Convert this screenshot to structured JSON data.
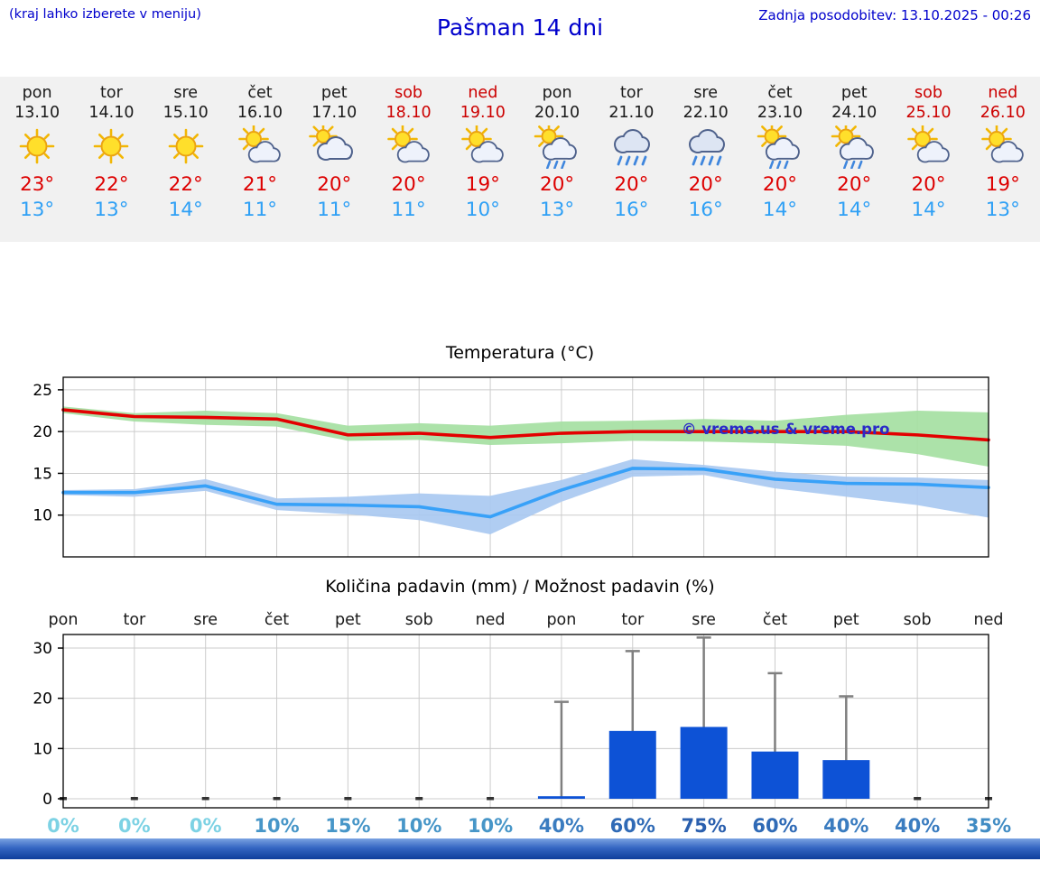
{
  "header": {
    "hint": "(kraj lahko izberete v meniju)",
    "title": "Pašman 14 dni",
    "updated": "Zadnja posodobitev: 13.10.2025 - 00:26"
  },
  "charts": {
    "watermark": "© vreme.us & vreme.pro",
    "watermark_color": "#2a2ac8",
    "grid_color": "#cccccc"
  },
  "forecast": {
    "days": [
      {
        "day": "pon",
        "date": "13.10",
        "weekend": false,
        "icon": "sun",
        "high": "23°",
        "low": "13°"
      },
      {
        "day": "tor",
        "date": "14.10",
        "weekend": false,
        "icon": "sun",
        "high": "22°",
        "low": "13°"
      },
      {
        "day": "sre",
        "date": "15.10",
        "weekend": false,
        "icon": "sun",
        "high": "22°",
        "low": "14°"
      },
      {
        "day": "čet",
        "date": "16.10",
        "weekend": false,
        "icon": "sun-cloud",
        "high": "21°",
        "low": "11°"
      },
      {
        "day": "pet",
        "date": "17.10",
        "weekend": false,
        "icon": "cloud-sun",
        "high": "20°",
        "low": "11°"
      },
      {
        "day": "sob",
        "date": "18.10",
        "weekend": true,
        "icon": "sun-cloud",
        "high": "20°",
        "low": "11°"
      },
      {
        "day": "ned",
        "date": "19.10",
        "weekend": true,
        "icon": "sun-cloud",
        "high": "19°",
        "low": "10°"
      },
      {
        "day": "pon",
        "date": "20.10",
        "weekend": false,
        "icon": "rain-sun",
        "high": "20°",
        "low": "13°"
      },
      {
        "day": "tor",
        "date": "21.10",
        "weekend": false,
        "icon": "rain",
        "high": "20°",
        "low": "16°"
      },
      {
        "day": "sre",
        "date": "22.10",
        "weekend": false,
        "icon": "rain",
        "high": "20°",
        "low": "16°"
      },
      {
        "day": "čet",
        "date": "23.10",
        "weekend": false,
        "icon": "rain-sun",
        "high": "20°",
        "low": "14°"
      },
      {
        "day": "pet",
        "date": "24.10",
        "weekend": false,
        "icon": "rain-sun",
        "high": "20°",
        "low": "14°"
      },
      {
        "day": "sob",
        "date": "25.10",
        "weekend": true,
        "icon": "sun-cloud",
        "high": "20°",
        "low": "14°"
      },
      {
        "day": "ned",
        "date": "26.10",
        "weekend": true,
        "icon": "sun-cloud",
        "high": "19°",
        "low": "13°"
      }
    ]
  },
  "chart_data": [
    {
      "type": "line",
      "title": "Temperatura (°C)",
      "x_labels": [
        "pon",
        "tor",
        "sre",
        "čet",
        "pet",
        "sob",
        "ned",
        "pon",
        "tor",
        "sre",
        "čet",
        "pet",
        "sob",
        "ned"
      ],
      "series": [
        {
          "name": "max-temp",
          "color": "#e30000",
          "values": [
            22.6,
            21.8,
            21.7,
            21.5,
            19.6,
            19.8,
            19.3,
            19.8,
            20.0,
            20.0,
            20.0,
            20.0,
            19.6,
            19.0
          ]
        },
        {
          "name": "min-temp",
          "color": "#38a1f8",
          "values": [
            12.7,
            12.7,
            13.5,
            11.3,
            11.2,
            11.0,
            9.8,
            13.0,
            15.6,
            15.5,
            14.3,
            13.8,
            13.7,
            13.3
          ]
        }
      ],
      "bands": [
        {
          "name": "max-range",
          "color": "#a5dfa2",
          "upper": [
            23.0,
            22.2,
            22.5,
            22.2,
            20.7,
            21.0,
            20.7,
            21.2,
            21.3,
            21.5,
            21.3,
            22.0,
            22.5,
            22.3
          ],
          "lower": [
            22.2,
            21.2,
            20.8,
            20.6,
            18.9,
            19.0,
            18.4,
            18.6,
            18.9,
            18.8,
            18.6,
            18.3,
            17.3,
            15.8
          ]
        },
        {
          "name": "min-range",
          "color": "#a9c9f1",
          "upper": [
            13.0,
            13.1,
            14.3,
            12.0,
            12.2,
            12.6,
            12.3,
            14.2,
            16.7,
            16.0,
            15.2,
            14.6,
            14.5,
            14.2
          ],
          "lower": [
            12.4,
            12.2,
            12.9,
            10.6,
            10.1,
            9.4,
            7.7,
            11.6,
            14.6,
            14.8,
            13.2,
            12.2,
            11.2,
            9.7
          ]
        }
      ],
      "yticks": [
        10,
        15,
        20,
        25
      ],
      "ylim": [
        5.0,
        26.5
      ],
      "grid": true,
      "legend": "none"
    },
    {
      "type": "bar",
      "title": "Količina padavin (mm) / Možnost padavin (%)",
      "categories": [
        "pon",
        "tor",
        "sre",
        "čet",
        "pet",
        "sob",
        "ned",
        "pon",
        "tor",
        "sre",
        "čet",
        "pet",
        "sob",
        "ned"
      ],
      "values": [
        0,
        0,
        0,
        0,
        0,
        0,
        0,
        0.5,
        13.5,
        14.3,
        9.4,
        7.7,
        0,
        0
      ],
      "whiskers": [
        0,
        0,
        0,
        0,
        0,
        0,
        0,
        19.3,
        29.4,
        32.1,
        25.0,
        20.4,
        0,
        0
      ],
      "probabilities": [
        "0%",
        "0%",
        "0%",
        "10%",
        "15%",
        "10%",
        "10%",
        "40%",
        "60%",
        "75%",
        "60%",
        "40%",
        "40%",
        "35%"
      ],
      "prob_colors": [
        "#7dd2e4",
        "#7dd2e4",
        "#7dd2e4",
        "#4796c8",
        "#4796c8",
        "#4796c8",
        "#4796c8",
        "#3a7cc0",
        "#2f6ab6",
        "#2a5fae",
        "#2f6ab6",
        "#3a7cc0",
        "#3a7cc0",
        "#418cc4"
      ],
      "bar_color": "#0d52d6",
      "whisker_color": "#7f7f7f",
      "yticks": [
        0,
        10,
        20,
        30
      ],
      "ylim": [
        -1.8,
        32.7
      ],
      "grid": true
    }
  ]
}
